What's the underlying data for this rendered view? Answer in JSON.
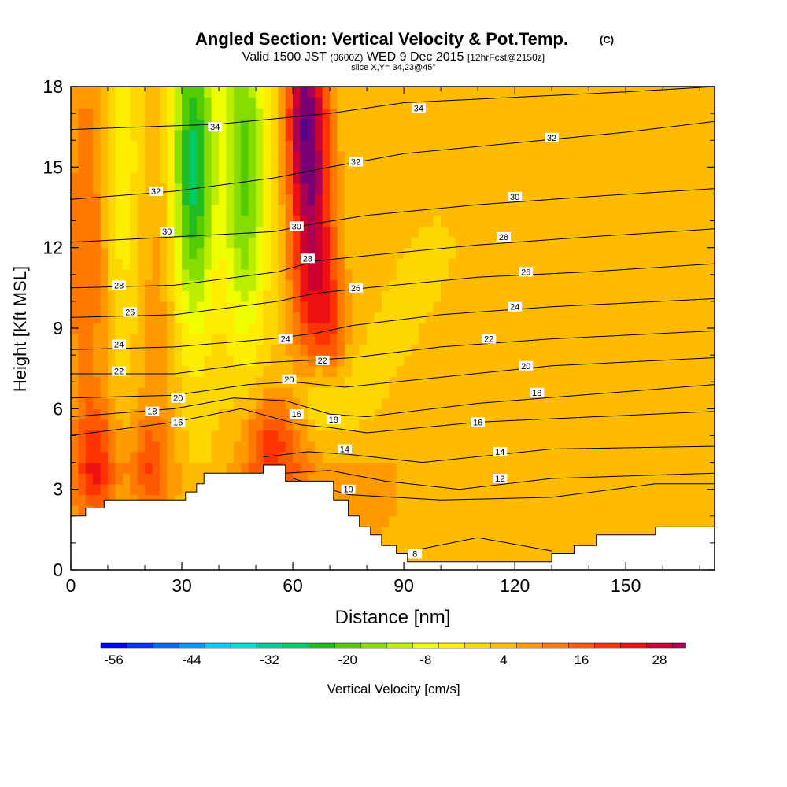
{
  "header": {
    "title": "Angled Section: Vertical Velocity & Pot.Temp.",
    "title_tag": "(C)",
    "valid_prefix": "Valid 1500 JST",
    "valid_zulu": "(0600Z)",
    "valid_date": "WED 9 Dec 2015",
    "forecast": "[12hrFcst@2150z]",
    "slice": "slice X,Y= 34,23@45°"
  },
  "chart_data": {
    "type": "heatmap",
    "xlabel": "Distance [nm]",
    "ylabel": "Height [Kft MSL]",
    "xlim": [
      0,
      174
    ],
    "ylim": [
      0,
      18
    ],
    "x_ticks": [
      0,
      30,
      60,
      90,
      120,
      150
    ],
    "y_ticks": [
      0,
      3,
      6,
      9,
      12,
      15,
      18
    ],
    "colorbar": {
      "label": "Vertical Velocity [cm/s]",
      "range": [
        -58,
        32
      ],
      "step": 4,
      "tick_values": [
        -56,
        -44,
        -32,
        -20,
        -8,
        4,
        16,
        28
      ],
      "tick_labels": [
        "-56",
        "-44",
        "-32",
        "-20",
        "-8",
        "4",
        "16",
        "28"
      ],
      "colors": [
        "#0000ff",
        "#0033ff",
        "#0066ff",
        "#0099ff",
        "#00ccff",
        "#00dddd",
        "#00cc99",
        "#00cc66",
        "#22bb22",
        "#55cc00",
        "#88dd00",
        "#bbee00",
        "#eeff00",
        "#ffee00",
        "#ffd700",
        "#ffbb00",
        "#ff9a00",
        "#ff7a00",
        "#ff5a00",
        "#ff3300",
        "#ee1111",
        "#cc0033",
        "#aa0055",
        "#770077",
        "#550088"
      ]
    },
    "terrain_kft": [
      [
        0,
        2
      ],
      [
        4,
        2
      ],
      [
        4,
        2.3
      ],
      [
        9,
        2.3
      ],
      [
        9,
        2.6
      ],
      [
        31,
        2.6
      ],
      [
        31,
        2.9
      ],
      [
        34,
        2.9
      ],
      [
        34,
        3.2
      ],
      [
        36,
        3.2
      ],
      [
        36,
        3.6
      ],
      [
        52,
        3.6
      ],
      [
        52,
        3.9
      ],
      [
        58,
        3.9
      ],
      [
        58,
        3.3
      ],
      [
        71,
        3.3
      ],
      [
        71,
        2.6
      ],
      [
        75,
        2.6
      ],
      [
        75,
        2
      ],
      [
        78,
        2
      ],
      [
        78,
        1.6
      ],
      [
        81,
        1.6
      ],
      [
        81,
        1.3
      ],
      [
        84,
        1.3
      ],
      [
        84,
        0.9
      ],
      [
        88,
        0.9
      ],
      [
        88,
        0.6
      ],
      [
        91,
        0.6
      ],
      [
        91,
        0.3
      ],
      [
        130,
        0.3
      ],
      [
        130,
        0.6
      ],
      [
        136,
        0.6
      ],
      [
        136,
        0.9
      ],
      [
        142,
        0.9
      ],
      [
        142,
        1.3
      ],
      [
        158,
        1.3
      ],
      [
        158,
        1.6
      ],
      [
        174,
        1.6
      ]
    ],
    "velocity_features": [
      {
        "kind": "updraft",
        "x": 65,
        "z": 14,
        "sx": 4,
        "sz": 5,
        "value": 30
      },
      {
        "kind": "updraft",
        "x": 62,
        "z": 17,
        "sx": 3,
        "sz": 2,
        "value": 14
      },
      {
        "kind": "updraft",
        "x": 71,
        "z": 8.5,
        "sx": 3,
        "sz": 2.5,
        "value": 12
      },
      {
        "kind": "updraft",
        "x": 7,
        "z": 4,
        "sx": 4,
        "sz": 1.5,
        "value": 16
      },
      {
        "kind": "updraft",
        "x": 21,
        "z": 4,
        "sx": 4,
        "sz": 1.5,
        "value": 12
      },
      {
        "kind": "updraft",
        "x": 54,
        "z": 4.5,
        "sx": 6,
        "sz": 1.5,
        "value": 18
      },
      {
        "kind": "updraft",
        "x": 4,
        "z": 12,
        "sx": 4,
        "sz": 6,
        "value": 12
      },
      {
        "kind": "updraft",
        "x": 24,
        "z": 10,
        "sx": 4,
        "sz": 5,
        "value": 6
      },
      {
        "kind": "updraft",
        "x": 80,
        "z": 3,
        "sx": 6,
        "sz": 1.2,
        "value": 6
      },
      {
        "kind": "downdraft",
        "x": 33,
        "z": 15,
        "sx": 4,
        "sz": 4,
        "value": -30
      },
      {
        "kind": "downdraft",
        "x": 47,
        "z": 15,
        "sx": 4,
        "sz": 4.5,
        "value": -22
      },
      {
        "kind": "downdraft",
        "x": 68,
        "z": 6.5,
        "sx": 5,
        "sz": 1.2,
        "value": -16
      },
      {
        "kind": "downdraft",
        "x": 14,
        "z": 15,
        "sx": 3,
        "sz": 4,
        "value": -8
      }
    ],
    "isentropes": [
      {
        "label": "8",
        "points": [
          [
            92,
            0.7
          ],
          [
            110,
            1.2
          ],
          [
            130,
            0.7
          ]
        ],
        "label_at": [
          93,
          0.6
        ]
      },
      {
        "label": "10",
        "points": [
          [
            60,
            3.4
          ],
          [
            75,
            2.8
          ],
          [
            100,
            2.6
          ],
          [
            130,
            2.7
          ],
          [
            158,
            3.2
          ],
          [
            174,
            3.2
          ]
        ],
        "label_at": [
          75,
          3
        ]
      },
      {
        "label": "12",
        "points": [
          [
            58,
            3.6
          ],
          [
            70,
            3.7
          ],
          [
            85,
            3.3
          ],
          [
            105,
            3
          ],
          [
            130,
            3.4
          ],
          [
            174,
            3.6
          ]
        ],
        "label_at": [
          116,
          3.4
        ]
      },
      {
        "label": "14",
        "points": [
          [
            52,
            4.2
          ],
          [
            64,
            4.4
          ],
          [
            75,
            4.3
          ],
          [
            95,
            4
          ],
          [
            130,
            4.5
          ],
          [
            174,
            4.6
          ]
        ],
        "label_at": [
          116,
          4.4
        ]
      },
      {
        "label": "16",
        "points": [
          [
            0,
            5
          ],
          [
            28,
            5.5
          ],
          [
            46,
            6
          ],
          [
            62,
            5.4
          ],
          [
            70,
            5.3
          ],
          [
            80,
            5.1
          ],
          [
            110,
            5.5
          ],
          [
            174,
            5.9
          ]
        ],
        "label_at": [
          110,
          5.5
        ]
      },
      {
        "label": "18",
        "points": [
          [
            0,
            5.7
          ],
          [
            28,
            6
          ],
          [
            44,
            6.4
          ],
          [
            58,
            6.3
          ],
          [
            70,
            5.8
          ],
          [
            80,
            5.7
          ],
          [
            110,
            6.2
          ],
          [
            174,
            6.9
          ]
        ],
        "label_at": [
          22,
          5.9
        ]
      },
      {
        "label": "20",
        "points": [
          [
            0,
            6.4
          ],
          [
            28,
            6.5
          ],
          [
            48,
            6.9
          ],
          [
            60,
            7
          ],
          [
            74,
            6.8
          ],
          [
            95,
            7.1
          ],
          [
            130,
            7.6
          ],
          [
            174,
            7.9
          ]
        ],
        "label_at": [
          123,
          7.6
        ]
      },
      {
        "label": "22",
        "points": [
          [
            0,
            7.3
          ],
          [
            28,
            7.3
          ],
          [
            50,
            7.7
          ],
          [
            64,
            7.8
          ],
          [
            76,
            7.9
          ],
          [
            100,
            8.3
          ],
          [
            130,
            8.6
          ],
          [
            174,
            8.9
          ]
        ],
        "label_at": [
          68,
          7.8
        ]
      },
      {
        "label": "24",
        "points": [
          [
            0,
            8.2
          ],
          [
            28,
            8.3
          ],
          [
            54,
            8.6
          ],
          [
            66,
            8.8
          ],
          [
            76,
            9.1
          ],
          [
            100,
            9.5
          ],
          [
            130,
            9.8
          ],
          [
            174,
            10.1
          ]
        ],
        "label_at": [
          58,
          8.6
        ]
      },
      {
        "label": "26",
        "points": [
          [
            0,
            9.4
          ],
          [
            28,
            9.5
          ],
          [
            56,
            10
          ],
          [
            66,
            10.3
          ],
          [
            80,
            10.5
          ],
          [
            110,
            10.9
          ],
          [
            140,
            11.1
          ],
          [
            174,
            11.4
          ]
        ],
        "label_at": [
          77,
          10.5
        ]
      },
      {
        "label": "28",
        "points": [
          [
            0,
            10.5
          ],
          [
            28,
            10.6
          ],
          [
            56,
            11.1
          ],
          [
            66,
            11.5
          ],
          [
            80,
            11.7
          ],
          [
            110,
            12.1
          ],
          [
            140,
            12.4
          ],
          [
            174,
            12.7
          ]
        ],
        "label_at": [
          117,
          12.4
        ]
      },
      {
        "label": "30",
        "points": [
          [
            0,
            12.2
          ],
          [
            28,
            12.4
          ],
          [
            55,
            12.6
          ],
          [
            66,
            12.9
          ],
          [
            80,
            13.2
          ],
          [
            110,
            13.6
          ],
          [
            140,
            13.9
          ],
          [
            174,
            14.2
          ]
        ],
        "label_at": [
          120,
          13.9
        ]
      },
      {
        "label": "32",
        "points": [
          [
            0,
            13.8
          ],
          [
            28,
            14.1
          ],
          [
            55,
            14.6
          ],
          [
            70,
            15
          ],
          [
            90,
            15.5
          ],
          [
            120,
            15.9
          ],
          [
            150,
            16.3
          ],
          [
            174,
            16.7
          ]
        ],
        "label_at": [
          130,
          16.1
        ]
      },
      {
        "label": "34",
        "points": [
          [
            0,
            16.4
          ],
          [
            40,
            16.6
          ],
          [
            70,
            17
          ],
          [
            90,
            17.4
          ],
          [
            120,
            17.6
          ],
          [
            150,
            17.8
          ],
          [
            174,
            18
          ]
        ],
        "label_at": [
          94,
          17.2
        ]
      }
    ],
    "isentrope_side_labels": [
      {
        "label": "34",
        "at": [
          39,
          16.5
        ]
      },
      {
        "label": "32",
        "at": [
          77,
          15.2
        ]
      },
      {
        "label": "32",
        "at": [
          23,
          14.1
        ]
      },
      {
        "label": "30",
        "at": [
          61,
          12.8
        ]
      },
      {
        "label": "30",
        "at": [
          26,
          12.6
        ]
      },
      {
        "label": "28",
        "at": [
          64,
          11.6
        ]
      },
      {
        "label": "28",
        "at": [
          13,
          10.6
        ]
      },
      {
        "label": "26",
        "at": [
          16,
          9.6
        ]
      },
      {
        "label": "26",
        "at": [
          123,
          11.1
        ]
      },
      {
        "label": "24",
        "at": [
          13,
          8.4
        ]
      },
      {
        "label": "24",
        "at": [
          120,
          9.8
        ]
      },
      {
        "label": "22",
        "at": [
          13,
          7.4
        ]
      },
      {
        "label": "22",
        "at": [
          113,
          8.6
        ]
      },
      {
        "label": "20",
        "at": [
          59,
          7.1
        ]
      },
      {
        "label": "20",
        "at": [
          29,
          6.4
        ]
      },
      {
        "label": "18",
        "at": [
          126,
          6.6
        ]
      },
      {
        "label": "18",
        "at": [
          71,
          5.6
        ]
      },
      {
        "label": "16",
        "at": [
          61,
          5.8
        ]
      },
      {
        "label": "16",
        "at": [
          29,
          5.5
        ]
      },
      {
        "label": "14",
        "at": [
          74,
          4.5
        ]
      }
    ]
  }
}
